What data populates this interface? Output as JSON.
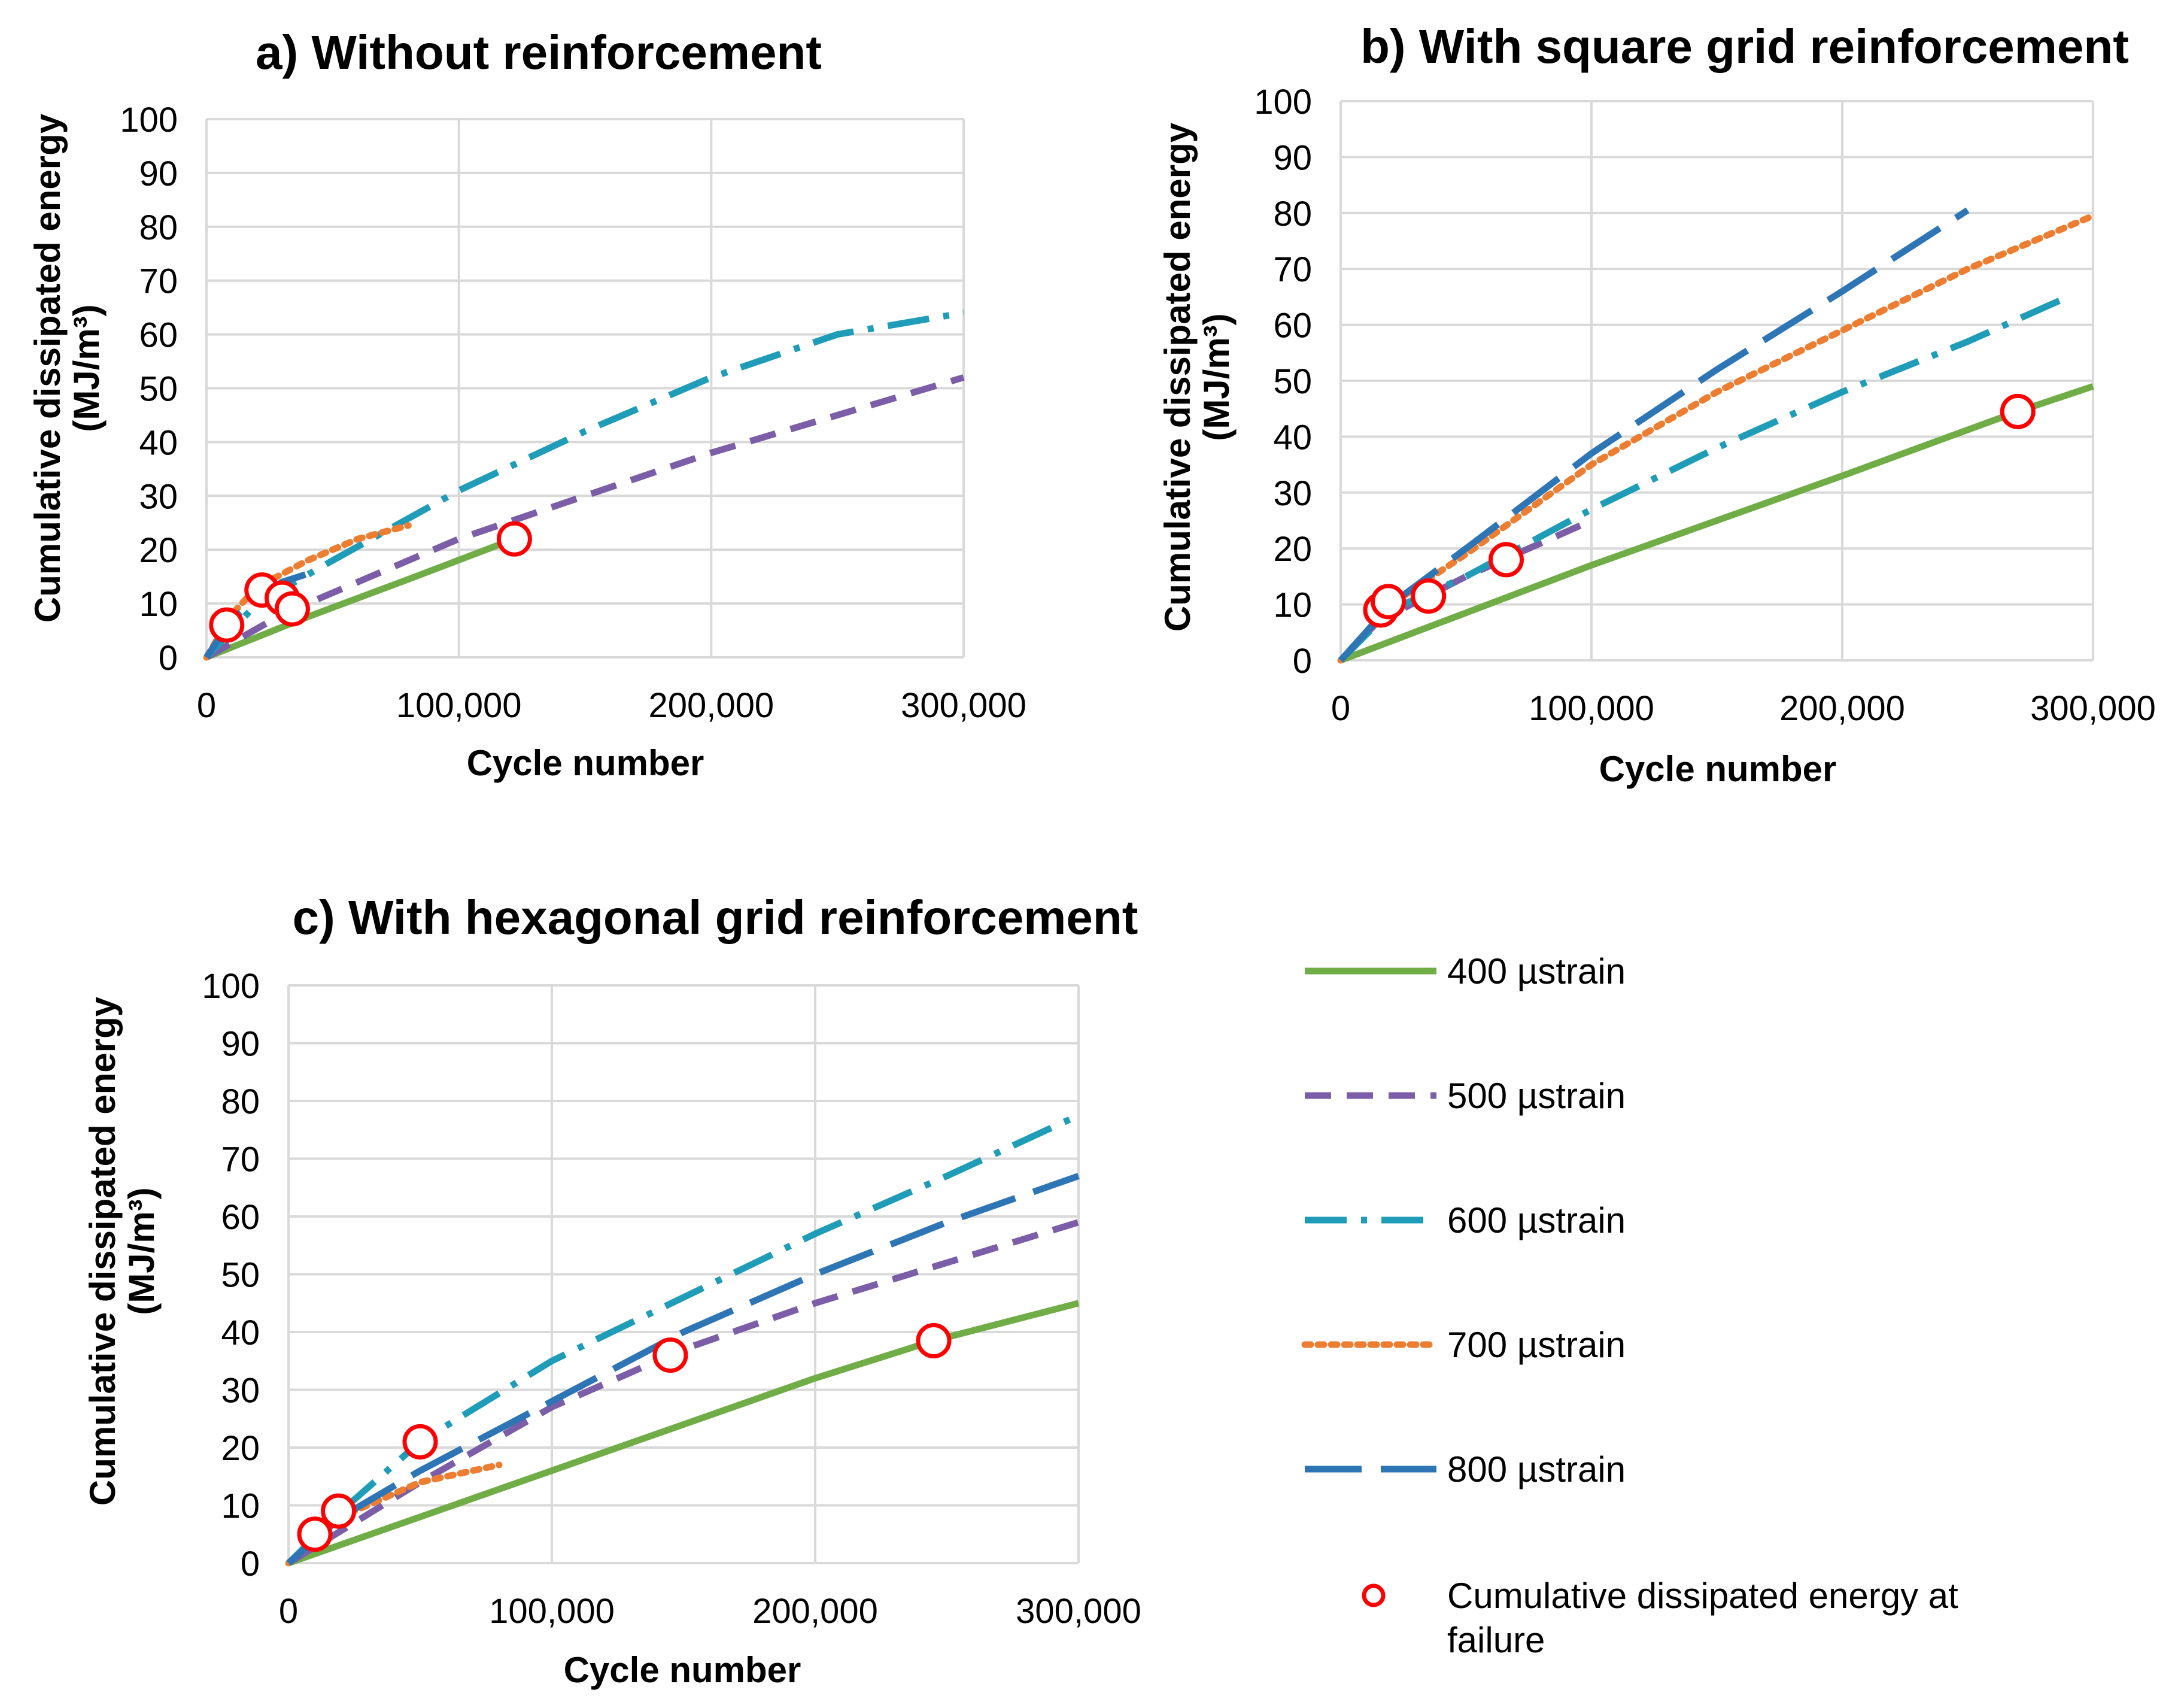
{
  "chart_data": [
    {
      "type": "line",
      "title": "a) Without reinforcement",
      "xlabel": "Cycle number",
      "ylabel_line1": "Cumulative dissipated energy",
      "ylabel_line2": "(MJ/m³)",
      "xlim": [
        0,
        300000
      ],
      "ylim": [
        0,
        100
      ],
      "xticks": [
        0,
        100000,
        200000,
        300000
      ],
      "xtick_labels": [
        "0",
        "100,000",
        "200,000",
        "300,000"
      ],
      "yticks": [
        0,
        10,
        20,
        30,
        40,
        50,
        60,
        70,
        80,
        90,
        100
      ],
      "ytick_labels": [
        "0",
        "10",
        "20",
        "30",
        "40",
        "50",
        "60",
        "70",
        "80",
        "90",
        "100"
      ],
      "grid": true,
      "series": [
        {
          "name": "400 µstrain",
          "x": [
            0,
            40000,
            80000,
            122000
          ],
          "y": [
            0,
            7.5,
            14.5,
            22
          ]
        },
        {
          "name": "500 µstrain",
          "x": [
            0,
            30000,
            100000,
            200000,
            300000
          ],
          "y": [
            0,
            8,
            22,
            38,
            52
          ]
        },
        {
          "name": "600 µstrain",
          "x": [
            0,
            20000,
            50000,
            100000,
            150000,
            200000,
            250000,
            300000
          ],
          "y": [
            0,
            10,
            18,
            31,
            42,
            52,
            60,
            64
          ]
        },
        {
          "name": "700 µstrain",
          "x": [
            0,
            10000,
            20000,
            40000,
            60000,
            80000
          ],
          "y": [
            0,
            8,
            13,
            18,
            22,
            24.5
          ]
        },
        {
          "name": "800 µstrain",
          "x": [
            0,
            10000,
            20000,
            30000,
            40000
          ],
          "y": [
            0,
            7,
            11,
            14,
            15.5
          ]
        }
      ],
      "failure_points": {
        "x": [
          8000,
          22000,
          30000,
          34000,
          122000
        ],
        "y": [
          6,
          12.5,
          11,
          9,
          22
        ]
      }
    },
    {
      "type": "line",
      "title": "b) With square grid reinforcement",
      "xlabel": "Cycle number",
      "ylabel_line1": "Cumulative dissipated energy",
      "ylabel_line2": "(MJ/m³)",
      "xlim": [
        0,
        300000
      ],
      "ylim": [
        0,
        100
      ],
      "xticks": [
        0,
        100000,
        200000,
        300000
      ],
      "xtick_labels": [
        "0",
        "100,000",
        "200,000",
        "300,000"
      ],
      "yticks": [
        0,
        10,
        20,
        30,
        40,
        50,
        60,
        70,
        80,
        90,
        100
      ],
      "ytick_labels": [
        "0",
        "10",
        "20",
        "30",
        "40",
        "50",
        "60",
        "70",
        "80",
        "90",
        "100"
      ],
      "grid": true,
      "series": [
        {
          "name": "400 µstrain",
          "x": [
            0,
            100000,
            200000,
            270000,
            300000
          ],
          "y": [
            0,
            17,
            33,
            44.5,
            49
          ]
        },
        {
          "name": "500 µstrain",
          "x": [
            0,
            15000,
            50000,
            100000
          ],
          "y": [
            0,
            7,
            15,
            25
          ]
        },
        {
          "name": "600 µstrain",
          "x": [
            0,
            20000,
            50000,
            100000,
            150000,
            200000,
            250000,
            290000
          ],
          "y": [
            0,
            9,
            15,
            27,
            38,
            48,
            57,
            65
          ]
        },
        {
          "name": "700 µstrain",
          "x": [
            0,
            20000,
            50000,
            100000,
            150000,
            200000,
            250000,
            300000
          ],
          "y": [
            0,
            10,
            19,
            35,
            48,
            59,
            70,
            79.5
          ]
        },
        {
          "name": "800 µstrain",
          "x": [
            0,
            20000,
            50000,
            100000,
            150000,
            200000,
            250000
          ],
          "y": [
            0,
            10,
            20,
            37,
            52,
            66,
            80.5
          ]
        }
      ],
      "failure_points": {
        "x": [
          16000,
          19000,
          35000,
          66000,
          270000
        ],
        "y": [
          9,
          10.5,
          11.5,
          18,
          44.5
        ]
      }
    },
    {
      "type": "line",
      "title": "c) With hexagonal grid reinforcement",
      "xlabel": "Cycle number",
      "ylabel_line1": "Cumulative dissipated energy",
      "ylabel_line2": "(MJ/m³)",
      "xlim": [
        0,
        300000
      ],
      "ylim": [
        0,
        100
      ],
      "xticks": [
        0,
        100000,
        200000,
        300000
      ],
      "xtick_labels": [
        "0",
        "100,000",
        "200,000",
        "300,000"
      ],
      "yticks": [
        0,
        10,
        20,
        30,
        40,
        50,
        60,
        70,
        80,
        90,
        100
      ],
      "ytick_labels": [
        "0",
        "10",
        "20",
        "30",
        "40",
        "50",
        "60",
        "70",
        "80",
        "90",
        "100"
      ],
      "grid": true,
      "series": [
        {
          "name": "400 µstrain",
          "x": [
            0,
            50000,
            100000,
            150000,
            200000,
            245000,
            300000
          ],
          "y": [
            0,
            8,
            16,
            24,
            32,
            38.5,
            45
          ]
        },
        {
          "name": "500 µstrain",
          "x": [
            0,
            50000,
            100000,
            150000,
            200000,
            250000,
            300000
          ],
          "y": [
            0,
            14,
            27,
            37,
            45,
            52,
            59
          ]
        },
        {
          "name": "600 µstrain",
          "x": [
            0,
            20000,
            50000,
            100000,
            150000,
            200000,
            250000,
            300000
          ],
          "y": [
            0,
            9,
            21,
            35,
            46,
            57,
            67,
            77.5
          ]
        },
        {
          "name": "700 µstrain",
          "x": [
            0,
            20000,
            50000,
            80000
          ],
          "y": [
            0,
            8,
            14,
            17
          ]
        },
        {
          "name": "800 µstrain",
          "x": [
            0,
            20000,
            50000,
            100000,
            150000,
            200000,
            250000,
            300000
          ],
          "y": [
            0,
            8,
            16,
            28,
            40,
            50,
            59,
            67
          ]
        }
      ],
      "failure_points": {
        "x": [
          10000,
          19000,
          50000,
          145000,
          245000
        ],
        "y": [
          5,
          9,
          21,
          36,
          38.5
        ]
      }
    }
  ],
  "legend": {
    "items": [
      {
        "label": "400 µstrain",
        "color": "#70AD47",
        "style": "solid"
      },
      {
        "label": "500 µstrain",
        "color": "#7B5EA7",
        "style": "dash"
      },
      {
        "label": "600 µstrain",
        "color": "#1E9CB8",
        "style": "dashdot"
      },
      {
        "label": "700 µstrain",
        "color": "#ED7D31",
        "style": "dot"
      },
      {
        "label": "800 µstrain",
        "color": "#2E75B6",
        "style": "longdash"
      }
    ],
    "marker_label_line1": "Cumulative dissipated energy at",
    "marker_label_line2": "failure",
    "marker_color": "#FF0000"
  },
  "colors": {
    "grid": "#D9D9D9",
    "axis": "#BFBFBF",
    "marker_fill": "#FFFFFF"
  }
}
